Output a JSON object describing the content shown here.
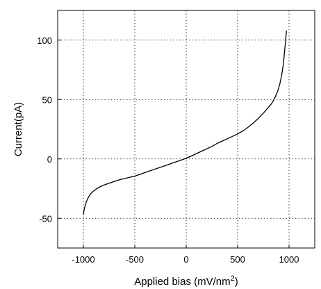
{
  "chart_data": {
    "type": "line",
    "title": "",
    "xlabel": "Applied bias (mV/nm",
    "xlabel_superscript": "2",
    "xlabel_suffix": ")",
    "ylabel": "Current(pA)",
    "xlim": [
      -1250,
      1250
    ],
    "ylim": [
      -75,
      125
    ],
    "xticks": [
      -1000,
      -500,
      0,
      500,
      1000
    ],
    "xtick_labels": [
      "-1000",
      "-500",
      "0",
      "500",
      "1000"
    ],
    "yticks": [
      -50,
      0,
      50,
      100
    ],
    "ytick_labels": [
      "-50",
      "0",
      "50",
      "100"
    ],
    "grid": true,
    "series": [
      {
        "x": [
          -1000,
          -995,
          -985,
          -970,
          -950,
          -925,
          -900,
          -870,
          -840,
          -800,
          -750,
          -700,
          -650,
          -600,
          -550,
          -500,
          -450,
          -400,
          -350,
          -300,
          -250,
          -200,
          -150,
          -100,
          -50,
          0,
          50,
          100,
          150,
          200,
          250,
          300,
          350,
          400,
          450,
          500,
          550,
          600,
          650,
          700,
          750,
          800,
          830,
          850,
          870,
          890,
          910,
          930,
          945,
          955,
          965,
          975
        ],
        "y": [
          -47,
          -44,
          -40,
          -36,
          -32,
          -29,
          -27,
          -25,
          -23.5,
          -22,
          -20.5,
          -19,
          -17.5,
          -16.5,
          -15.5,
          -14.5,
          -13,
          -11.5,
          -10,
          -8.5,
          -7,
          -5.5,
          -4,
          -2.5,
          -1,
          0.5,
          2.5,
          4.5,
          6.5,
          8.5,
          10.5,
          13,
          15,
          17,
          19,
          21,
          23.5,
          26.5,
          30,
          34,
          38.5,
          43.5,
          46.5,
          49.5,
          53,
          57,
          63,
          71,
          80,
          89,
          98,
          108
        ]
      }
    ]
  }
}
